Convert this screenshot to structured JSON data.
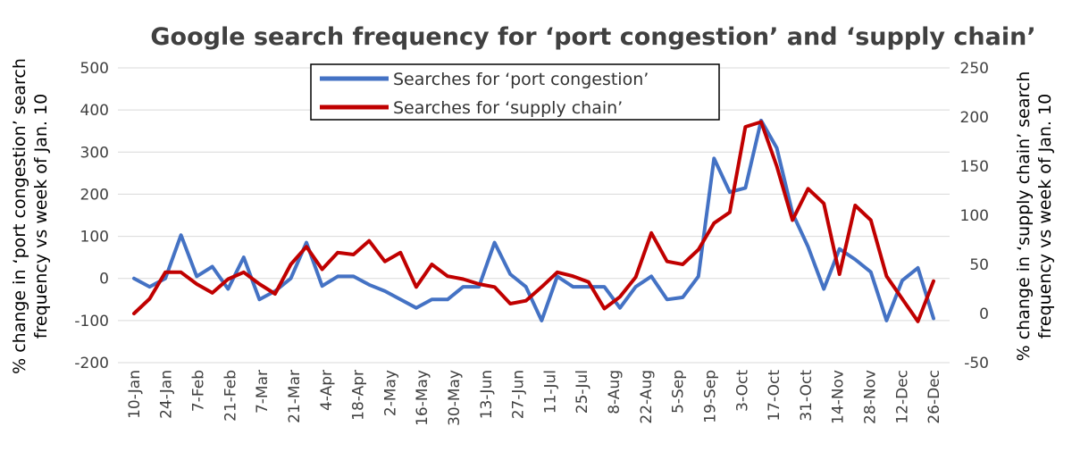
{
  "chart_data": {
    "type": "line",
    "title": "Google search frequency for ‘port congestion’ and ‘supply chain’",
    "y_left_label_lines": [
      "% change in ‘port congestion’ search",
      "frequency vs week of Jan. 10"
    ],
    "y_right_label_lines": [
      "% change in ‘supply chain’ search",
      "frequency vs week of Jan. 10"
    ],
    "y_left_lim": [
      -200,
      500
    ],
    "y_left_ticks": [
      -200,
      -100,
      0,
      100,
      200,
      300,
      400,
      500
    ],
    "y_right_lim": [
      -50,
      250
    ],
    "y_right_ticks": [
      -50,
      0,
      50,
      100,
      150,
      200,
      250
    ],
    "x_tick_labels": [
      "10-Jan",
      "24-Jan",
      "7-Feb",
      "21-Feb",
      "7-Mar",
      "21-Mar",
      "4-Apr",
      "18-Apr",
      "2-May",
      "16-May",
      "30-May",
      "13-Jun",
      "27-Jun",
      "11-Jul",
      "25-Jul",
      "8-Aug",
      "22-Aug",
      "5-Sep",
      "19-Sep",
      "3-Oct",
      "17-Oct",
      "31-Oct",
      "14-Nov",
      "28-Nov",
      "12-Dec",
      "26-Dec"
    ],
    "grid": true,
    "legend_position": "top-center",
    "series": [
      {
        "name": "Searches for ‘port congestion’",
        "axis": "left",
        "color": "#4472c4",
        "values": [
          0,
          -20,
          0,
          103,
          5,
          28,
          -25,
          50,
          -50,
          -30,
          0,
          85,
          -18,
          5,
          5,
          -15,
          -30,
          -50,
          -70,
          -50,
          -50,
          -20,
          -20,
          85,
          10,
          -20,
          -100,
          5,
          -20,
          -20,
          -20,
          -70,
          -20,
          5,
          -50,
          -45,
          5,
          285,
          205,
          215,
          375,
          310,
          155,
          75,
          -25,
          70,
          45,
          15,
          -100,
          -5,
          25,
          -95
        ]
      },
      {
        "name": "Searches for ‘supply chain’",
        "axis": "right",
        "color": "#c00000",
        "values": [
          0,
          15,
          42,
          42,
          30,
          21,
          35,
          42,
          30,
          20,
          50,
          68,
          45,
          62,
          60,
          74,
          53,
          62,
          27,
          50,
          38,
          35,
          30,
          27,
          10,
          13,
          27,
          42,
          38,
          32,
          5,
          17,
          37,
          82,
          53,
          50,
          65,
          92,
          103,
          190,
          195,
          150,
          95,
          127,
          112,
          40,
          110,
          95,
          38,
          15,
          -8,
          33
        ]
      }
    ]
  }
}
